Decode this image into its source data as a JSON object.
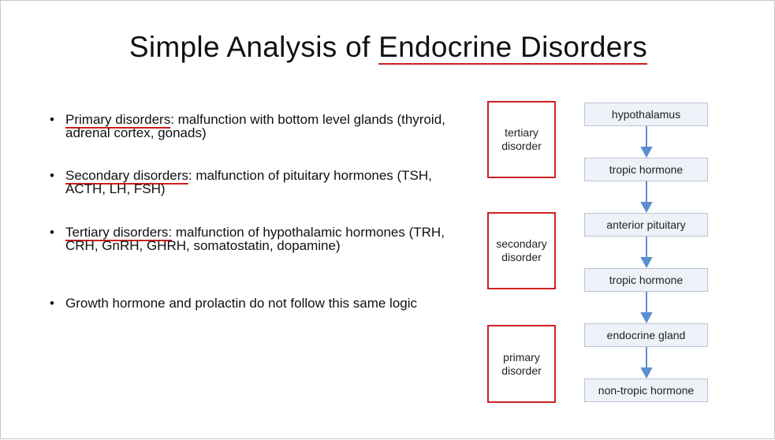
{
  "title": {
    "prefix": "Simple Analysis of ",
    "underlined": "Endocrine Disorders"
  },
  "bullets": [
    {
      "term": "Primary disorders",
      "rest": ": malfunction with bottom level glands (thyroid, adrenal cortex, gonads)"
    },
    {
      "term": "Secondary disorders",
      "rest": ": malfunction of pituitary hormones (TSH, ACTH, LH, FSH)"
    },
    {
      "term": "Tertiary disorders:",
      "rest": " malfunction of hypothalamic hormones (TRH, CRH, GnRH, GHRH, somatostatin, dopamine)"
    },
    {
      "term": "",
      "rest": "Growth hormone and prolactin do not follow this same logic"
    }
  ],
  "diagram": {
    "categories": [
      "tertiary disorder",
      "secondary disorder",
      "primary disorder"
    ],
    "nodes": [
      "hypothalamus",
      "tropic hormone",
      "anterior pituitary",
      "tropic hormone",
      "endocrine gland",
      "non-tropic hormone"
    ],
    "colors": {
      "box_border": "#cc2222",
      "arrow": "#5b8fd0",
      "node_fill": "#eef2f8",
      "underline": "#cc1f1f"
    }
  }
}
